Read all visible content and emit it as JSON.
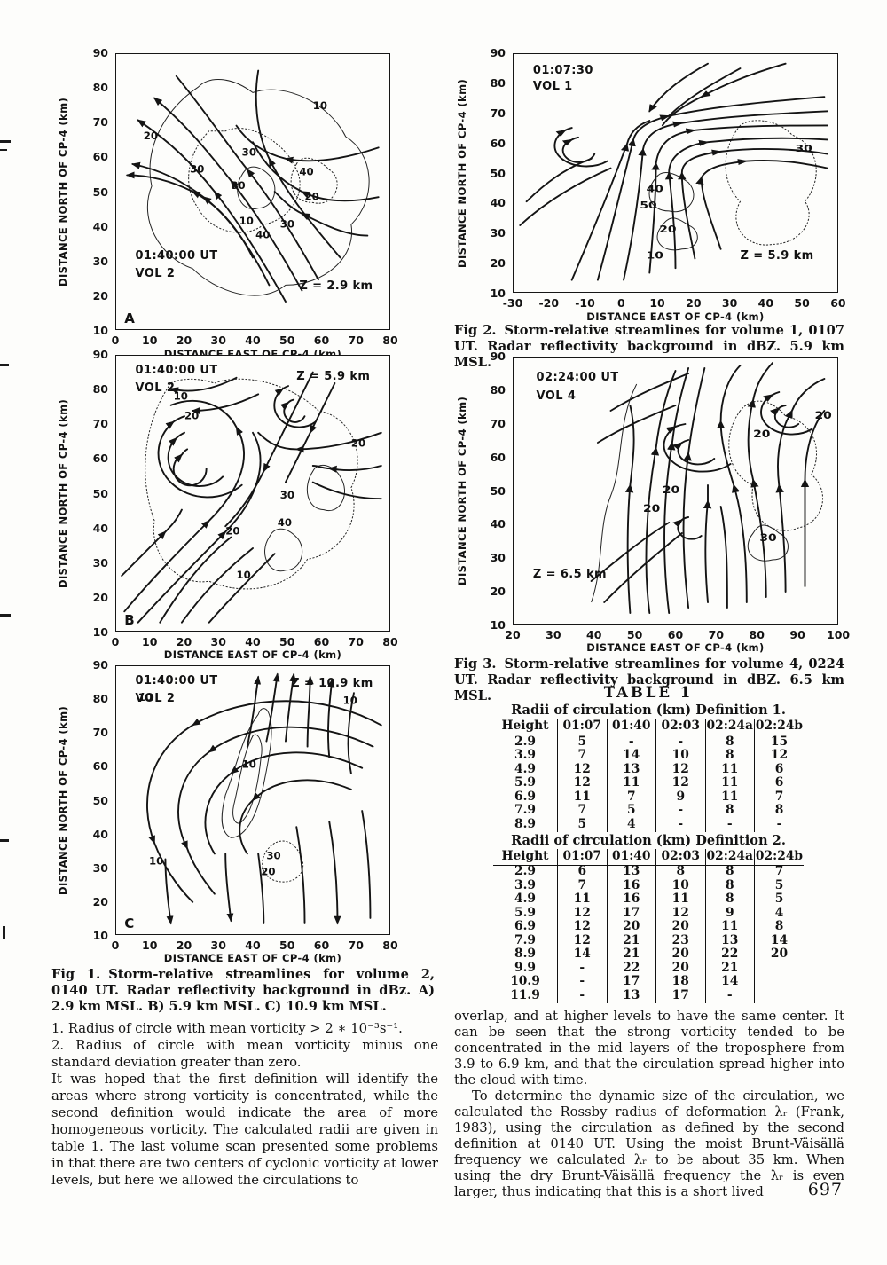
{
  "page": {
    "number": "697"
  },
  "figures": [
    {
      "id": "fig1a",
      "panel_letter": "A",
      "time_label": "01:40:00 UT",
      "vol_label": "VOL 2",
      "z_label": "Z = 2.9 km",
      "xlabel": "DISTANCE EAST OF CP-4 (km)",
      "ylabel": "DISTANCE NORTH OF CP-4 (km)",
      "xticks": [
        "0",
        "10",
        "20",
        "30",
        "40",
        "50",
        "60",
        "70",
        "80"
      ],
      "yticks": [
        "90",
        "80",
        "70",
        "60",
        "50",
        "40",
        "30",
        "20",
        "10"
      ],
      "contour_labels": [
        "20",
        "30",
        "30",
        "30",
        "40",
        "20",
        "10",
        "40",
        "10",
        "30"
      ]
    },
    {
      "id": "fig2",
      "time_label": "01:07:30",
      "vol_label": "VOL 1",
      "z_label": "Z = 5.9 km",
      "xlabel": "DISTANCE EAST OF CP-4 (km)",
      "ylabel": "DISTANCE NORTH OF CP-4 (km)",
      "xticks": [
        "-30",
        "-20",
        "-10",
        "0",
        "10",
        "20",
        "30",
        "40",
        "50",
        "60"
      ],
      "yticks": [
        "90",
        "80",
        "70",
        "60",
        "50",
        "40",
        "30",
        "20",
        "10"
      ],
      "contour_labels": [
        "30",
        "40",
        "50",
        "20",
        "10"
      ]
    },
    {
      "id": "fig1b",
      "panel_letter": "B",
      "time_label": "01:40:00 UT",
      "vol_label": "VOL 2",
      "z_label": "Z = 5.9 km",
      "xlabel": "DISTANCE EAST OF CP-4 (km)",
      "ylabel": "DISTANCE NORTH OF CP-4 (km)",
      "xticks": [
        "0",
        "10",
        "20",
        "30",
        "40",
        "50",
        "60",
        "70",
        "80"
      ],
      "yticks": [
        "90",
        "80",
        "70",
        "60",
        "50",
        "40",
        "30",
        "20",
        "10"
      ],
      "contour_labels": [
        "10",
        "20",
        "20",
        "30",
        "40",
        "20",
        "10"
      ]
    },
    {
      "id": "fig3",
      "time_label": "02:24:00 UT",
      "vol_label": "VOL 4",
      "z_label": "Z = 6.5 km",
      "xlabel": "DISTANCE EAST OF CP-4 (km)",
      "ylabel": "DISTANCE NORTH OF CP-4 (km)",
      "xticks": [
        "20",
        "30",
        "40",
        "50",
        "60",
        "70",
        "80",
        "90",
        "100"
      ],
      "yticks": [
        "90",
        "80",
        "70",
        "60",
        "50",
        "40",
        "30",
        "20",
        "10"
      ],
      "contour_labels": [
        "20",
        "20",
        "20",
        "30",
        "20"
      ]
    },
    {
      "id": "fig1c",
      "panel_letter": "C",
      "time_label": "01:40:00 UT",
      "vol_label": "VOL 2",
      "z_label": "Z = 10.9 km",
      "xlabel": "DISTANCE EAST OF CP-4 (km)",
      "ylabel": "DISTANCE NORTH OF CP-4 (km)",
      "xticks": [
        "0",
        "10",
        "20",
        "30",
        "40",
        "50",
        "60",
        "70",
        "80"
      ],
      "yticks": [
        "90",
        "80",
        "70",
        "60",
        "50",
        "40",
        "30",
        "20",
        "10"
      ],
      "contour_labels": [
        "10",
        "10",
        "10",
        "30",
        "20",
        "10"
      ]
    }
  ],
  "captions": {
    "fig1": {
      "label": "Fig 1.",
      "text": "Storm-relative streamlines for volume 2, 0140 UT. Radar reflectivity background in dBz. A) 2.9 km MSL. B) 5.9 km MSL. C) 10.9 km MSL."
    },
    "fig2": {
      "label": "Fig 2.",
      "text": "Storm-relative streamlines for volume 1, 0107 UT. Radar reflectivity background in dBZ. 5.9 km MSL."
    },
    "fig3": {
      "label": "Fig 3.",
      "text": "Storm-relative streamlines for volume 4, 0224 UT. Radar reflectivity background in dBZ. 6.5 km MSL."
    }
  },
  "notes": {
    "item1": "1. Radius of circle with mean vorticity > 2 ∗ 10⁻³s⁻¹.",
    "item2": "2. Radius of circle with mean vorticity minus one standard deviation greater than zero.",
    "paragraph": "It was hoped that the first definition will identify the areas where strong vorticity is concentrated, while the second definition would indicate the area of more homogeneous vorticity. The calculated radii are given in table 1. The last volume scan presented some problems in that there are two centers of cyclonic vorticity at lower levels, but here we allowed the circulations to"
  },
  "right_text": {
    "paragraph1": "overlap, and at higher levels to have the same center. It can be seen that the strong vorticity tended to be concentrated in the mid layers of the troposphere from 3.9 to 6.9 km, and that the circulation spread higher into the cloud with time.",
    "paragraph2": "To determine the dynamic size of the circulation, we calculated the Rossby radius of deformation λᵣ (Frank, 1983), using the circulation as defined by the second definition at 0140 UT. Using the moist Brunt-Väisällä frequency we calculated λᵣ to be about 35 km. When using the dry Brunt-Väisällä frequency the λᵣ is even larger, thus indicating that this is a short lived"
  },
  "table": {
    "title": "TABLE 1",
    "section1": {
      "subtitle": "Radii of circulation (km) Definition 1.",
      "headers": [
        "Height",
        "01:07",
        "01:40",
        "02:03",
        "02:24a",
        "02:24b"
      ],
      "rows": [
        [
          "2.9",
          "5",
          "-",
          "-",
          "8",
          "15"
        ],
        [
          "3.9",
          "7",
          "14",
          "10",
          "8",
          "12"
        ],
        [
          "4.9",
          "12",
          "13",
          "12",
          "11",
          "6"
        ],
        [
          "5.9",
          "12",
          "11",
          "12",
          "11",
          "6"
        ],
        [
          "6.9",
          "11",
          "7",
          "9",
          "11",
          "7"
        ],
        [
          "7.9",
          "7",
          "5",
          "-",
          "8",
          "8"
        ],
        [
          "8.9",
          "5",
          "4",
          "-",
          "-",
          "-"
        ]
      ]
    },
    "section2": {
      "subtitle": "Radii of circulation (km) Definition 2.",
      "headers": [
        "Height",
        "01:07",
        "01:40",
        "02:03",
        "02:24a",
        "02:24b"
      ],
      "rows": [
        [
          "2.9",
          "6",
          "13",
          "8",
          "8",
          "7"
        ],
        [
          "3.9",
          "7",
          "16",
          "10",
          "8",
          "5"
        ],
        [
          "4.9",
          "11",
          "16",
          "11",
          "8",
          "5"
        ],
        [
          "5.9",
          "12",
          "17",
          "12",
          "9",
          "4"
        ],
        [
          "6.9",
          "12",
          "20",
          "20",
          "11",
          "8"
        ],
        [
          "7.9",
          "12",
          "21",
          "23",
          "13",
          "14"
        ],
        [
          "8.9",
          "14",
          "21",
          "20",
          "22",
          "20"
        ],
        [
          "9.9",
          "-",
          "22",
          "20",
          "21",
          ""
        ],
        [
          "10.9",
          "-",
          "17",
          "18",
          "14",
          ""
        ],
        [
          "11.9",
          "-",
          "13",
          "17",
          "-",
          ""
        ]
      ]
    }
  }
}
